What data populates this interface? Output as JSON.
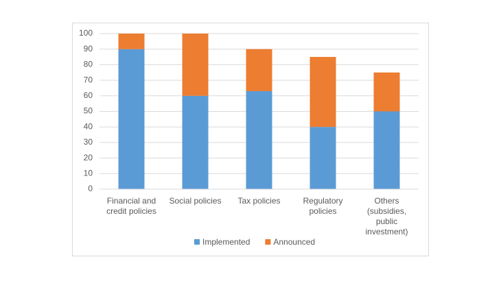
{
  "chart_data": {
    "type": "stacked-bar",
    "categories": [
      "Financial and credit policies",
      "Social policies",
      "Tax policies",
      "Regulatory policies",
      "Others (subsidies, public investment)"
    ],
    "series": [
      {
        "name": "Implemented",
        "color": "#5b9bd5",
        "values": [
          90,
          60,
          63,
          40,
          50
        ]
      },
      {
        "name": "Announced",
        "color": "#ed7d31",
        "values": [
          10,
          40,
          27,
          45,
          25
        ]
      }
    ],
    "ylim": [
      0,
      100
    ],
    "yticks": [
      0,
      10,
      20,
      30,
      40,
      50,
      60,
      70,
      80,
      90,
      100
    ],
    "grid": true,
    "legend": "bottom"
  }
}
